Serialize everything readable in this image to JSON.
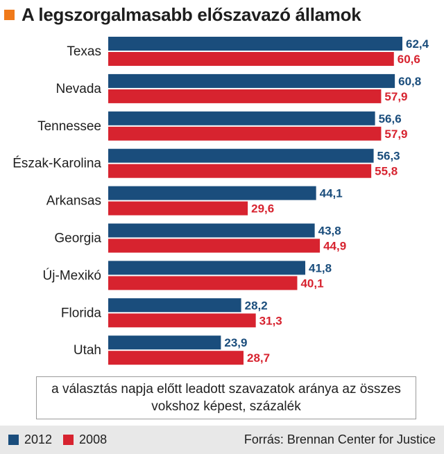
{
  "title": "A legszorgalmasabb előszavazó államok",
  "note": "a választás napja előtt leadott szavazatok aránya az összes vokshoz képest, százalék",
  "source": "Forrás: Brennan Center for Justice",
  "colors": {
    "accent": "#f07a1a",
    "series_2012": "#1a4d7c",
    "series_2008": "#d7232f"
  },
  "chart_data": {
    "type": "bar",
    "orientation": "horizontal",
    "categories": [
      "Texas",
      "Nevada",
      "Tennessee",
      "Észak-Karolina",
      "Arkansas",
      "Georgia",
      "Új-Mexikó",
      "Florida",
      "Utah"
    ],
    "series": [
      {
        "name": "2012",
        "values": [
          62.4,
          60.8,
          56.6,
          56.3,
          44.1,
          43.8,
          41.8,
          28.2,
          23.9
        ],
        "labels": [
          "62,4",
          "60,8",
          "56,6",
          "56,3",
          "44,1",
          "43,8",
          "41,8",
          "28,2",
          "23,9"
        ]
      },
      {
        "name": "2008",
        "values": [
          60.6,
          57.9,
          57.9,
          55.8,
          29.6,
          44.9,
          40.1,
          31.3,
          28.7
        ],
        "labels": [
          "60,6",
          "57,9",
          "57,9",
          "55,8",
          "29,6",
          "44,9",
          "40,1",
          "31,3",
          "28,7"
        ]
      }
    ],
    "xlim": [
      0,
      62.4
    ],
    "legend": "bottom-left",
    "grid": false
  }
}
